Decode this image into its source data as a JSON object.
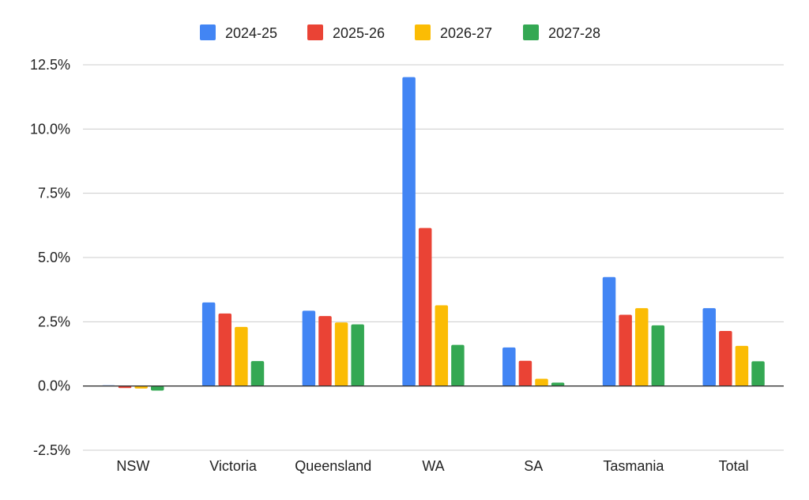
{
  "chart_data": {
    "type": "bar",
    "categories": [
      "NSW",
      "Victoria",
      "Queensland",
      "WA",
      "SA",
      "Tasmania",
      "Total"
    ],
    "series": [
      {
        "name": "2024-25",
        "color": "#4285F4",
        "values": [
          0.03,
          3.25,
          2.93,
          12.02,
          1.5,
          4.24,
          3.03
        ]
      },
      {
        "name": "2025-26",
        "color": "#EA4335",
        "values": [
          -0.08,
          2.82,
          2.72,
          6.15,
          0.98,
          2.77,
          2.14
        ]
      },
      {
        "name": "2026-27",
        "color": "#FBBC04",
        "values": [
          -0.1,
          2.3,
          2.47,
          3.14,
          0.28,
          3.03,
          1.56
        ]
      },
      {
        "name": "2027-28",
        "color": "#34A853",
        "values": [
          -0.18,
          0.97,
          2.4,
          1.6,
          0.13,
          2.36,
          0.96
        ]
      }
    ],
    "y_ticks": [
      "-2.5%",
      "0.0%",
      "2.5%",
      "5.0%",
      "7.5%",
      "10.0%",
      "12.5%"
    ],
    "ylim": [
      -2.5,
      12.5
    ],
    "y_unit": "%",
    "grid": true,
    "legend_position": "top-center"
  }
}
